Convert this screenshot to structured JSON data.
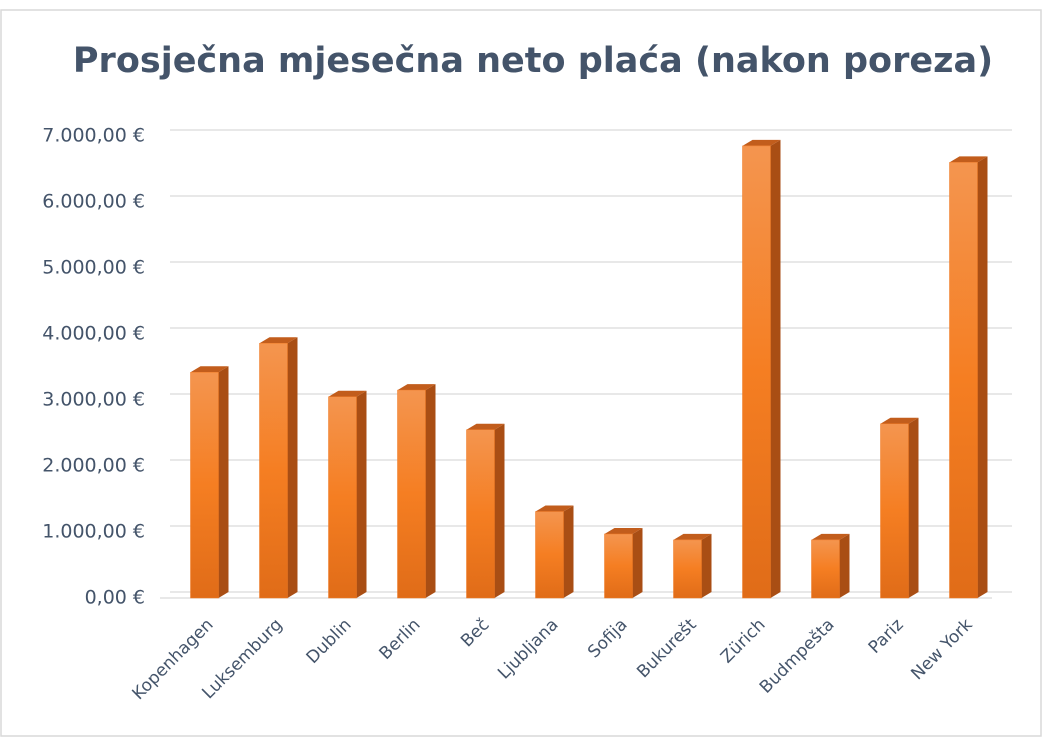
{
  "chart_data": {
    "type": "bar3d",
    "title": "Prosječna mjesečna neto plaća (nakon poreza)",
    "categories": [
      "Kopenhagen",
      "Luksemburg",
      "Dublin",
      "Berlin",
      "Beč",
      "Ljubljana",
      "Sofija",
      "Bukurešt",
      "Zürich",
      "Budmpešta",
      "Pariz",
      "New York"
    ],
    "values": [
      3420,
      3860,
      3050,
      3150,
      2550,
      1310,
      970,
      880,
      6850,
      880,
      2640,
      6600
    ],
    "color": "#f07a25",
    "ylim": [
      0,
      7000
    ],
    "yticks": [
      {
        "value": 0,
        "label": "0,00 €"
      },
      {
        "value": 1000,
        "label": "1.000,00 €"
      },
      {
        "value": 2000,
        "label": "2.000,00 €"
      },
      {
        "value": 3000,
        "label": "3.000,00 €"
      },
      {
        "value": 4000,
        "label": "4.000,00 €"
      },
      {
        "value": 5000,
        "label": "5.000,00 €"
      },
      {
        "value": 6000,
        "label": "6.000,00 €"
      },
      {
        "value": 7000,
        "label": "7.000,00 €"
      }
    ],
    "grid": true
  }
}
